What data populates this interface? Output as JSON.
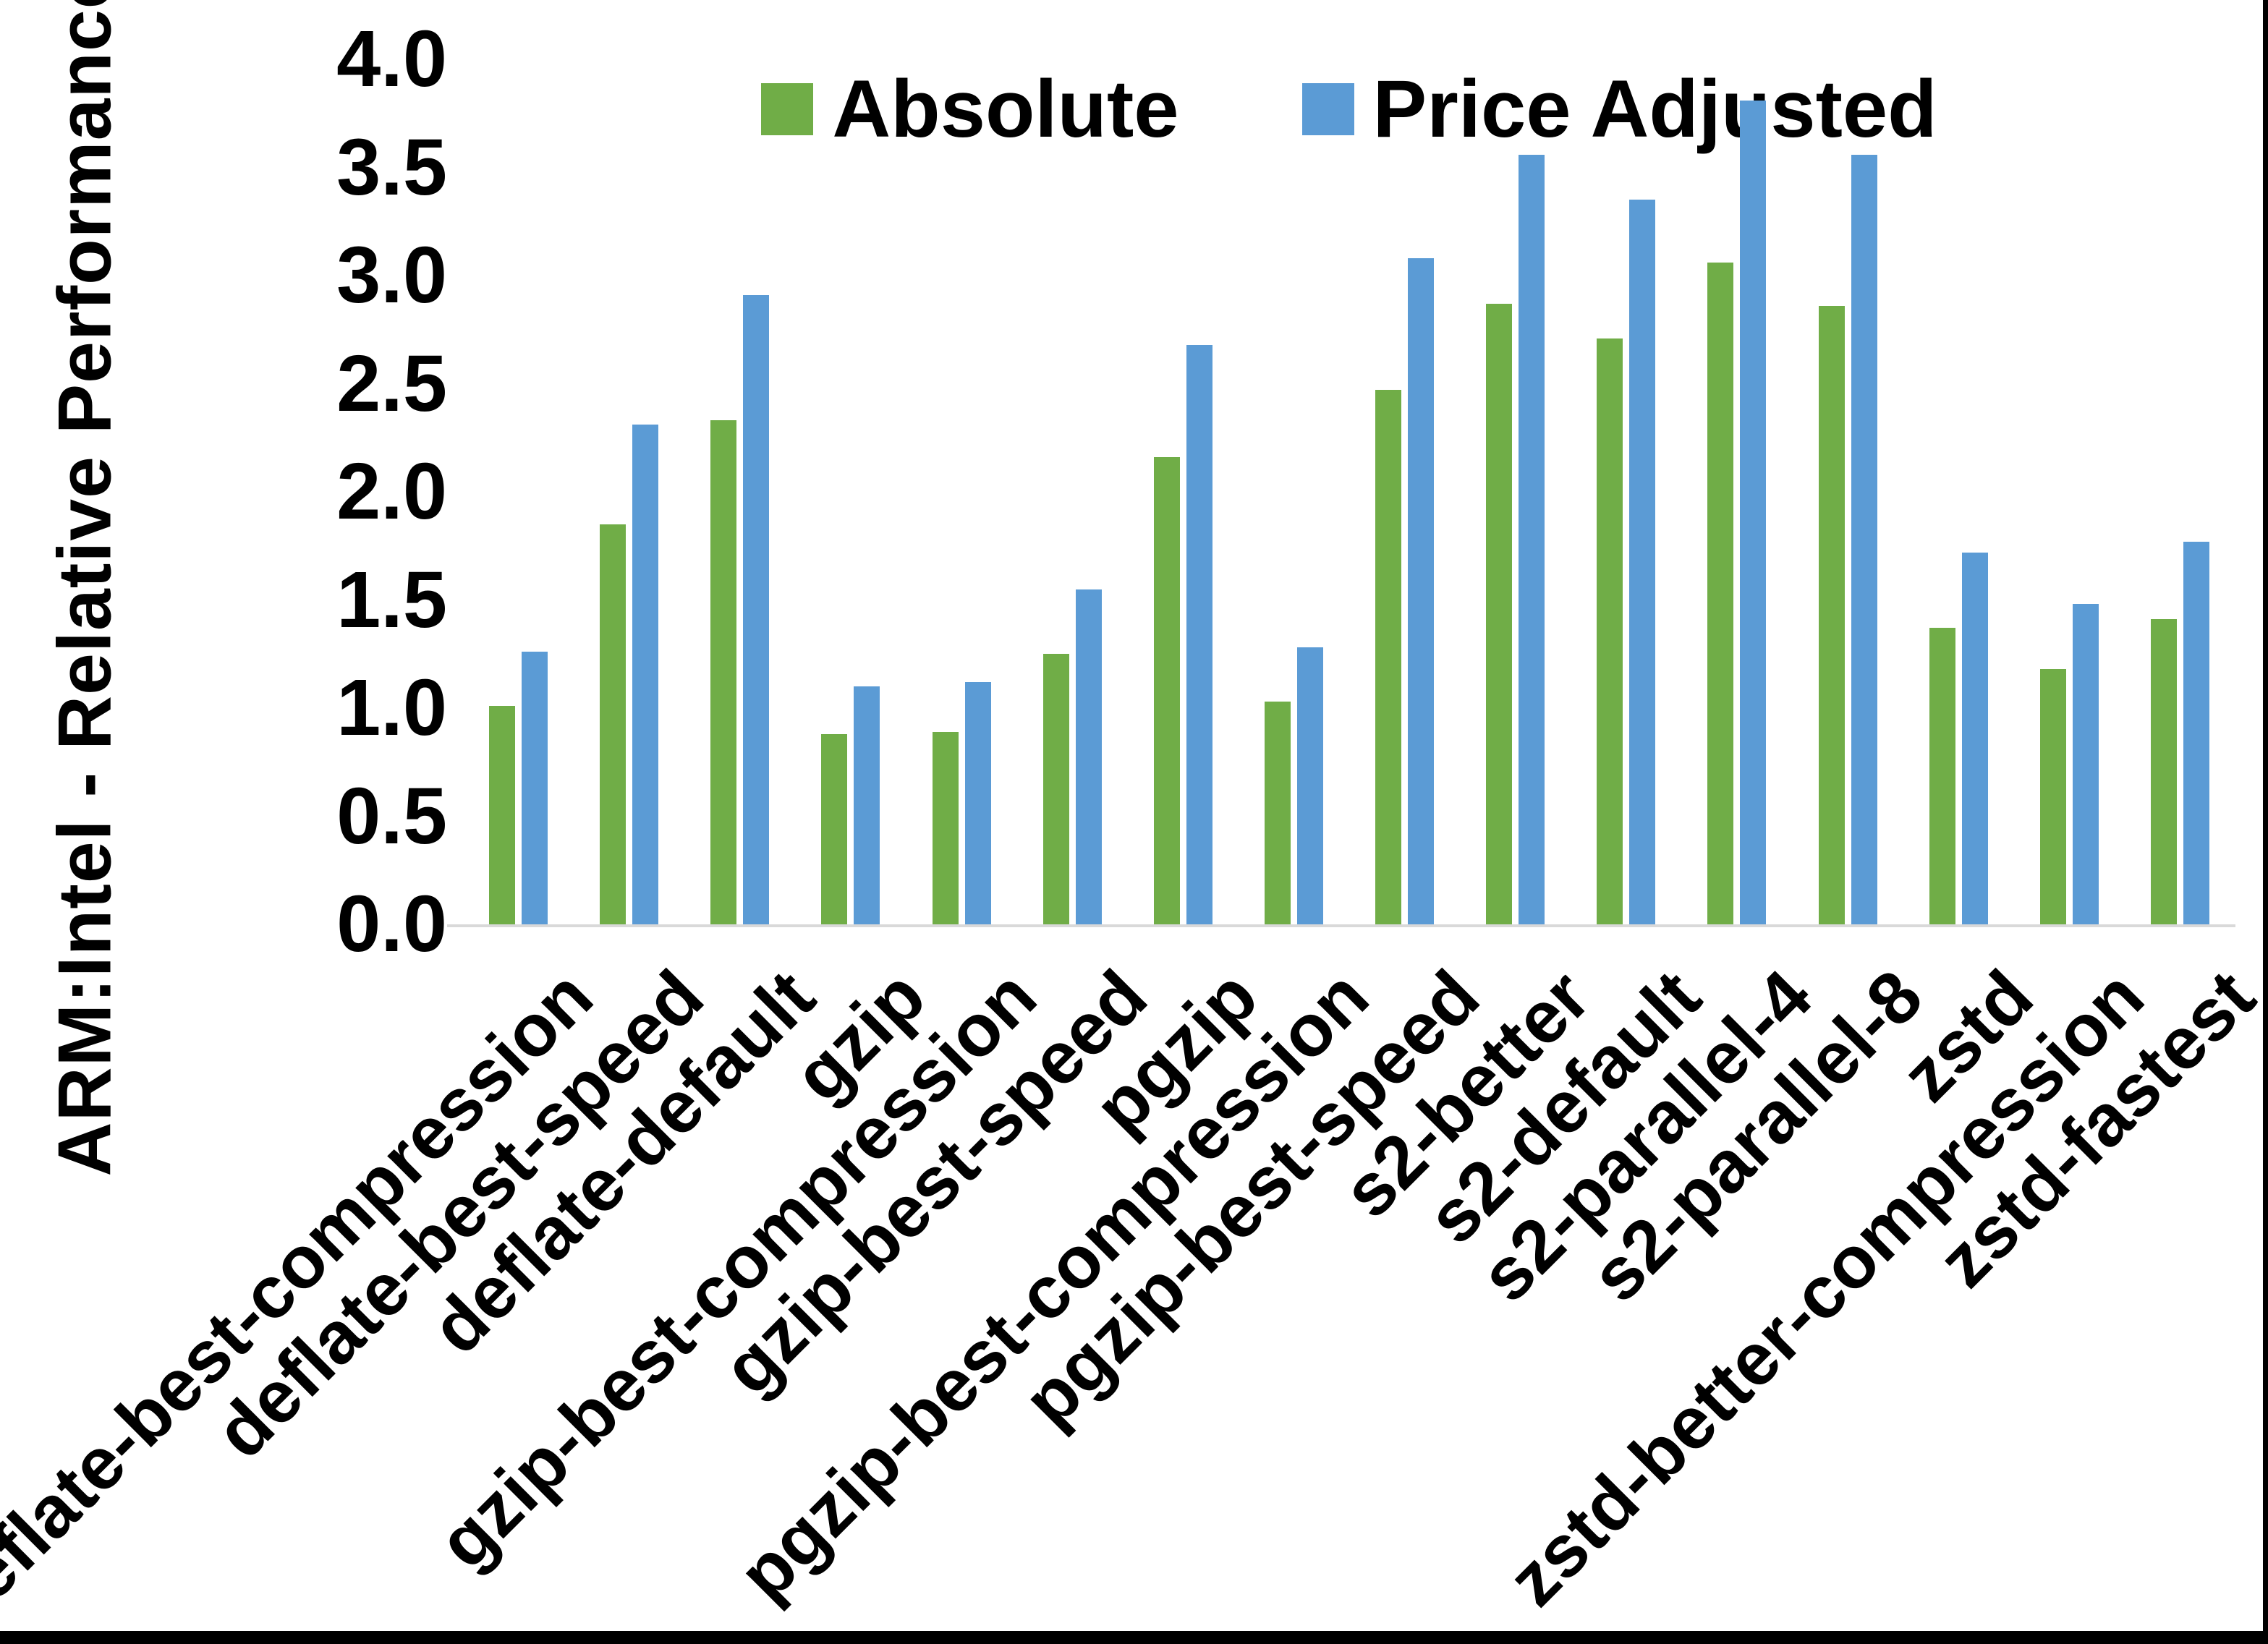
{
  "page": {
    "background": "#ffffff",
    "border_color": "#000000"
  },
  "chart_data": {
    "type": "bar",
    "title": "",
    "xlabel": "",
    "ylabel": "ARM:Intel - Relative Performance",
    "ylim": [
      0.0,
      4.0
    ],
    "y_ticks": [
      "0.0",
      "0.5",
      "1.0",
      "1.5",
      "2.0",
      "2.5",
      "3.0",
      "3.5",
      "4.0"
    ],
    "grid": false,
    "legend_position": "top-center",
    "axis_line_color": "#d9d9d9",
    "categories": [
      "deflate-best-compression",
      "deflate-best-speed",
      "deflate-default",
      "gzip",
      "gzip-best-compression",
      "gzip-best-speed",
      "pgzip",
      "pgzip-best-compression",
      "pgzip-best-speed",
      "s2-better",
      "s2-default",
      "s2-parallel-4",
      "s2-parallel-8",
      "zstd",
      "zstd-better-compression",
      "zstd-fastest"
    ],
    "series": [
      {
        "name": "Absolute",
        "color": "#70AD47",
        "values": [
          1.01,
          1.85,
          2.33,
          0.88,
          0.89,
          1.25,
          2.16,
          1.03,
          2.47,
          2.87,
          2.71,
          3.06,
          2.86,
          1.37,
          1.18,
          1.41
        ]
      },
      {
        "name": "Price Adjusted",
        "color": "#5B9BD5",
        "values": [
          1.26,
          2.31,
          2.91,
          1.1,
          1.12,
          1.55,
          2.68,
          1.28,
          3.08,
          3.56,
          3.35,
          3.81,
          3.56,
          1.72,
          1.48,
          1.77
        ]
      }
    ]
  }
}
